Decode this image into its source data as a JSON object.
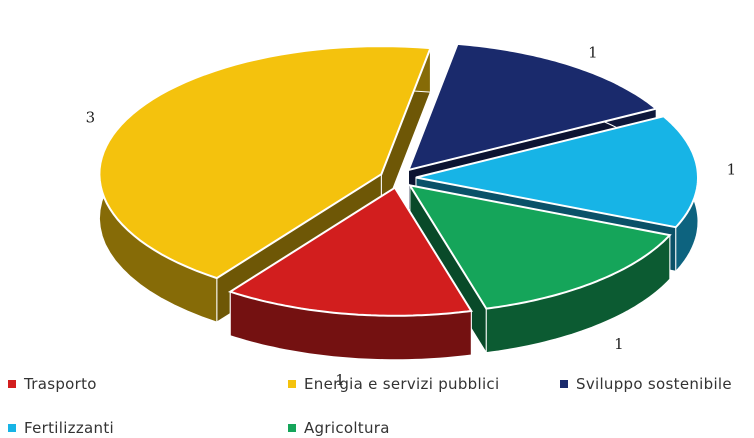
{
  "chart_data": {
    "type": "pie",
    "title": "",
    "style": "3d-exploded",
    "legend_position": "bottom",
    "slices": [
      {
        "label": "Sviluppo sostenibile",
        "value": 1,
        "color": "#1a2a6c",
        "value_label": "1"
      },
      {
        "label": "Fertilizzanti",
        "value": 1,
        "color": "#17b4e6",
        "value_label": "1"
      },
      {
        "label": "Agricoltura",
        "value": 1,
        "color": "#15a55a",
        "value_label": "1"
      },
      {
        "label": "Trasporto",
        "value": 1,
        "color": "#d21e1e",
        "value_label": "1"
      },
      {
        "label": "Energia e servizi pubblici",
        "value": 3,
        "color": "#f4c20d",
        "value_label": "3"
      }
    ],
    "legend_order": [
      "Trasporto",
      "Energia e servizi pubblici",
      "Sviluppo sostenibile",
      "Fertilizzanti",
      "Agricoltura"
    ]
  }
}
